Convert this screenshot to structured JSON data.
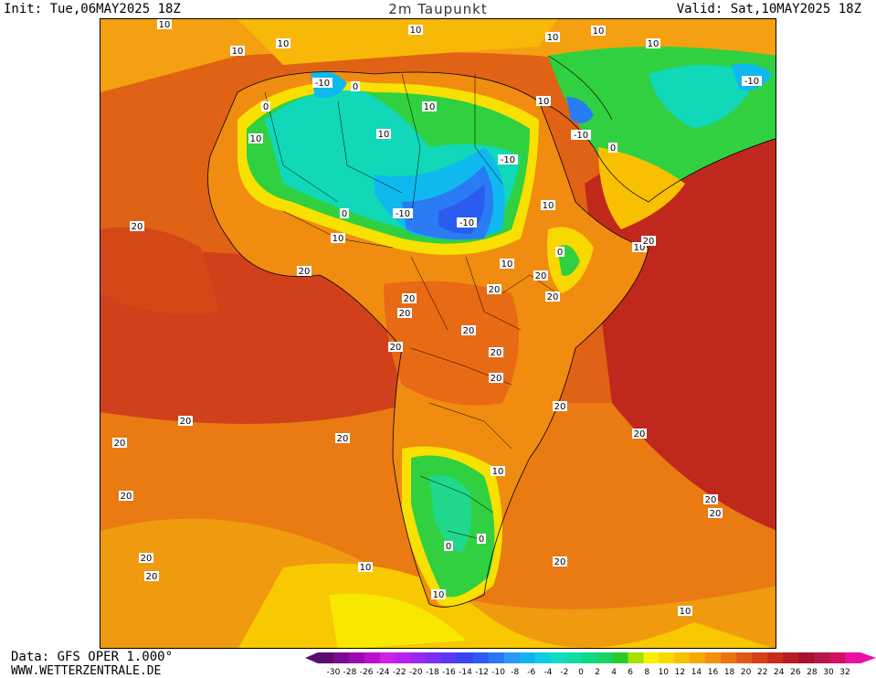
{
  "header": {
    "init": "Init: Tue,06MAY2025 18Z",
    "title": "2m Taupunkt",
    "valid": "Valid: Sat,10MAY2025 18Z"
  },
  "footer": {
    "data_source": "Data: GFS OPER 1.000°",
    "website": "WWW.WETTERZENTRALE.DE"
  },
  "legend": {
    "ticks": [
      "-30",
      "-28",
      "-26",
      "-24",
      "-22",
      "-20",
      "-18",
      "-16",
      "-14",
      "-12",
      "-10",
      "-8",
      "-6",
      "-4",
      "-2",
      "0",
      "2",
      "4",
      "6",
      "8",
      "10",
      "12",
      "14",
      "16",
      "18",
      "20",
      "22",
      "24",
      "26",
      "28",
      "30",
      "32"
    ],
    "colors": [
      "#5a0c6e",
      "#7a0a8e",
      "#9a0aae",
      "#ba10ce",
      "#d020e6",
      "#b820f0",
      "#9828f0",
      "#7a30f0",
      "#5838f0",
      "#3844f0",
      "#2a5cf0",
      "#2a78f4",
      "#2a98f4",
      "#10b4f0",
      "#10cce0",
      "#10dcc4",
      "#10dca4",
      "#10d884",
      "#18d464",
      "#28cc28",
      "#a8e000",
      "#f8f000",
      "#f8d800",
      "#f8c000",
      "#f8a800",
      "#f49010",
      "#ec7410",
      "#e05818",
      "#d44018",
      "#c82c1c",
      "#b81c24",
      "#a8102c",
      "#b41848",
      "#d01060",
      "#ec10a0"
    ]
  },
  "map_labels": [
    "10",
    "-10",
    "0",
    "20"
  ]
}
